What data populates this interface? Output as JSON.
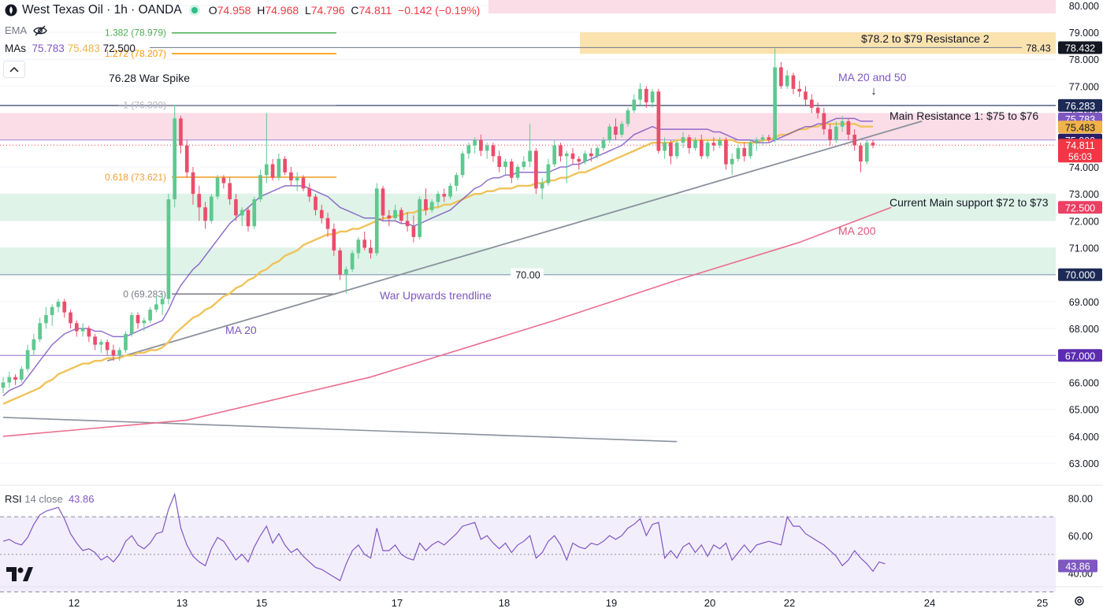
{
  "header": {
    "title": "West Texas Oil · 1h · OANDA",
    "open_label": "O",
    "open": "74.958",
    "high_label": "H",
    "high": "74.968",
    "low_label": "L",
    "low": "74.796",
    "close_label": "C",
    "close": "74.811",
    "change": "−0.142 (−0.19%)"
  },
  "indicators": {
    "ema_label": "EMA",
    "mas_label": "MAs",
    "ma20_value": "75.783",
    "ma50_value": "75.483",
    "ma200_value": "72.500",
    "rsi_label": "RSI",
    "rsi_params": "14 close",
    "rsi_value": "43.86"
  },
  "colors": {
    "up": "#26a69a",
    "down": "#f23645",
    "ma20": "#7e57c2",
    "ma50": "#f0c35a",
    "ma200": "#ec6d8f",
    "trend": "#8a919c",
    "rsi": "#7e57c2"
  },
  "chart_data": {
    "type": "candlestick",
    "x_ticks": [
      "12",
      "13",
      "15",
      "17",
      "18",
      "19",
      "20",
      "22",
      "24",
      "25"
    ],
    "y_ticks": [
      "80.000",
      "79.000",
      "78.000",
      "77.000",
      "76.000",
      "75.000",
      "74.000",
      "73.000",
      "72.000",
      "71.000",
      "70.000",
      "69.000",
      "68.000",
      "67.000",
      "66.000",
      "65.000",
      "64.000",
      "63.000"
    ],
    "ylim": [
      62.3,
      80.2
    ],
    "rsi_ticks": [
      "80.00",
      "60.00",
      "40.00"
    ],
    "rsi_ylim": [
      34,
      86
    ],
    "price_tags": [
      {
        "value": 78.432,
        "label": "78.432",
        "bg": "#131722",
        "fg": "#ffffff"
      },
      {
        "value": 76.283,
        "label": "76.283",
        "bg": "#1c2a55",
        "fg": "#ffffff"
      },
      {
        "value": 75.783,
        "label": "75.783",
        "bg": "#7e57c2",
        "fg": "#ffffff"
      },
      {
        "value": 75.483,
        "label": "75.483",
        "bg": "#f0b24a",
        "fg": "#131722"
      },
      {
        "value": 75.0,
        "label": "75.000",
        "bg": "#2a1f66",
        "fg": "#ffffff"
      },
      {
        "value": 74.811,
        "label": "74.811",
        "bg": "#f23645",
        "fg": "#ffffff",
        "sub": "56:03"
      },
      {
        "value": 72.5,
        "label": "72.500",
        "bg": "#ec3f63",
        "fg": "#ffffff"
      },
      {
        "value": 70.0,
        "label": "70.000",
        "bg": "#1c2a55",
        "fg": "#ffffff"
      },
      {
        "value": 67.0,
        "label": "67.000",
        "bg": "#5b2bb0",
        "fg": "#ffffff"
      }
    ],
    "rsi_tag": "43.86",
    "fib_levels": [
      {
        "label": "1.382 (78.979)",
        "value": 78.979,
        "color": "#4caf50"
      },
      {
        "label": "1.272 (78.207)",
        "value": 78.207,
        "color": "#ff9800"
      },
      {
        "label": "1 (76.300)",
        "value": 76.3,
        "color": "#b2b5be"
      },
      {
        "label": "0.618 (73.621)",
        "value": 73.621,
        "color": "#f0a030"
      },
      {
        "label": "0 (69.283)",
        "value": 69.283,
        "color": "#787b86"
      }
    ],
    "zones": [
      {
        "name": "$78.2 to $79 Resistance 2",
        "from": 78.2,
        "to": 79.0,
        "color": "#fbe3b0"
      },
      {
        "name": "Main Resistance 1: $75 to $76",
        "from": 75.0,
        "to": 76.0,
        "color": "#fbdde7"
      },
      {
        "name": "Current Main support $72 to $73",
        "from": 72.0,
        "to": 73.0,
        "color": "#dff3e8"
      }
    ],
    "annotations": {
      "war_spike": "76.28 War Spike",
      "ma_20_50": "MA 20 and 50",
      "resistance_1": "Main Resistance 1: $75 to $76",
      "resistance_2": "$78.2 to $79 Resistance 2",
      "support": "Current Main support $72 to $73",
      "ma200": "MA 200",
      "ma20": "MA 20",
      "trendline": "War Upwards trendline",
      "level_70": "70.00",
      "level_7843": "78.43"
    },
    "candles": [
      [
        65.8,
        66.2,
        65.6,
        66.0
      ],
      [
        66.0,
        66.4,
        65.8,
        66.2
      ],
      [
        66.2,
        66.3,
        65.9,
        66.1
      ],
      [
        66.1,
        66.6,
        66.0,
        66.5
      ],
      [
        66.5,
        67.4,
        66.4,
        67.2
      ],
      [
        67.2,
        67.8,
        67.0,
        67.6
      ],
      [
        67.6,
        68.4,
        67.5,
        68.2
      ],
      [
        68.2,
        68.8,
        68.0,
        68.5
      ],
      [
        68.5,
        68.9,
        68.1,
        68.8
      ],
      [
        68.8,
        69.1,
        68.6,
        69.0
      ],
      [
        69.0,
        69.1,
        68.4,
        68.6
      ],
      [
        68.6,
        68.7,
        68.0,
        68.2
      ],
      [
        68.2,
        68.3,
        67.7,
        67.9
      ],
      [
        67.9,
        68.2,
        67.7,
        68.0
      ],
      [
        68.0,
        68.1,
        67.5,
        67.7
      ],
      [
        67.7,
        67.8,
        67.2,
        67.4
      ],
      [
        67.4,
        67.6,
        67.1,
        67.5
      ],
      [
        67.5,
        67.6,
        67.0,
        67.2
      ],
      [
        67.2,
        67.4,
        66.8,
        67.0
      ],
      [
        67.0,
        67.3,
        66.8,
        67.2
      ],
      [
        67.2,
        67.9,
        67.1,
        67.8
      ],
      [
        67.8,
        68.6,
        67.7,
        68.5
      ],
      [
        68.5,
        68.6,
        68.0,
        68.2
      ],
      [
        68.2,
        68.4,
        67.9,
        68.3
      ],
      [
        68.3,
        68.8,
        68.2,
        68.7
      ],
      [
        68.7,
        69.2,
        68.6,
        68.9
      ],
      [
        68.9,
        69.3,
        68.5,
        69.1
      ],
      [
        69.1,
        73.0,
        68.9,
        72.8
      ],
      [
        72.8,
        76.3,
        72.5,
        75.8
      ],
      [
        75.8,
        75.9,
        74.5,
        74.8
      ],
      [
        74.8,
        75.0,
        73.6,
        73.8
      ],
      [
        73.8,
        74.0,
        72.6,
        73.0
      ],
      [
        73.0,
        73.3,
        72.0,
        72.5
      ],
      [
        72.5,
        72.7,
        71.7,
        72.0
      ],
      [
        72.0,
        73.0,
        71.9,
        72.9
      ],
      [
        72.9,
        73.7,
        72.8,
        73.6
      ],
      [
        73.6,
        73.7,
        73.2,
        73.4
      ],
      [
        73.4,
        73.6,
        72.6,
        72.8
      ],
      [
        72.8,
        73.0,
        72.0,
        72.2
      ],
      [
        72.2,
        72.5,
        71.8,
        72.4
      ],
      [
        72.4,
        72.5,
        71.6,
        71.8
      ],
      [
        71.8,
        72.9,
        71.7,
        72.8
      ],
      [
        72.8,
        73.9,
        72.7,
        73.7
      ],
      [
        73.7,
        76.0,
        73.4,
        74.1
      ],
      [
        74.1,
        74.3,
        73.5,
        73.6
      ],
      [
        73.6,
        74.5,
        73.5,
        74.3
      ],
      [
        74.3,
        74.4,
        73.7,
        73.8
      ],
      [
        73.8,
        74.0,
        73.3,
        73.5
      ],
      [
        73.5,
        73.8,
        73.1,
        73.6
      ],
      [
        73.6,
        73.7,
        73.1,
        73.2
      ],
      [
        73.2,
        73.4,
        72.7,
        72.9
      ],
      [
        72.9,
        73.0,
        72.2,
        72.4
      ],
      [
        72.4,
        72.6,
        71.9,
        72.1
      ],
      [
        72.1,
        72.3,
        71.4,
        71.7
      ],
      [
        71.7,
        71.9,
        70.7,
        70.9
      ],
      [
        70.9,
        71.0,
        69.8,
        70.0
      ],
      [
        70.0,
        70.3,
        69.3,
        70.2
      ],
      [
        70.2,
        70.9,
        70.1,
        70.8
      ],
      [
        70.8,
        71.4,
        70.6,
        71.3
      ],
      [
        71.3,
        71.6,
        70.9,
        71.0
      ],
      [
        71.0,
        71.3,
        70.6,
        70.8
      ],
      [
        70.8,
        73.4,
        70.7,
        73.2
      ],
      [
        73.2,
        73.3,
        72.0,
        72.2
      ],
      [
        72.2,
        72.4,
        71.8,
        72.1
      ],
      [
        72.1,
        72.6,
        72.0,
        72.4
      ],
      [
        72.4,
        72.5,
        71.9,
        72.0
      ],
      [
        72.0,
        72.3,
        71.6,
        71.8
      ],
      [
        71.8,
        72.2,
        71.2,
        71.4
      ],
      [
        71.4,
        72.9,
        71.3,
        72.8
      ],
      [
        72.8,
        73.2,
        72.2,
        72.4
      ],
      [
        72.4,
        72.8,
        72.3,
        72.7
      ],
      [
        72.7,
        73.1,
        72.5,
        73.0
      ],
      [
        73.0,
        73.2,
        72.7,
        72.9
      ],
      [
        72.9,
        73.4,
        72.8,
        73.3
      ],
      [
        73.3,
        73.8,
        73.1,
        73.7
      ],
      [
        73.7,
        74.6,
        73.6,
        74.5
      ],
      [
        74.5,
        74.9,
        74.3,
        74.8
      ],
      [
        74.8,
        75.1,
        74.5,
        75.0
      ],
      [
        75.0,
        75.2,
        74.4,
        74.6
      ],
      [
        74.6,
        74.9,
        74.3,
        74.8
      ],
      [
        74.8,
        74.9,
        74.2,
        74.4
      ],
      [
        74.4,
        74.6,
        73.8,
        74.0
      ],
      [
        74.0,
        74.3,
        73.7,
        74.2
      ],
      [
        74.2,
        74.3,
        73.4,
        73.6
      ],
      [
        73.6,
        74.1,
        73.5,
        74.0
      ],
      [
        74.0,
        74.4,
        73.9,
        74.2
      ],
      [
        74.2,
        75.6,
        74.0,
        74.6
      ],
      [
        74.6,
        74.7,
        73.0,
        73.2
      ],
      [
        73.2,
        73.6,
        72.8,
        73.4
      ],
      [
        73.4,
        74.3,
        73.3,
        74.1
      ],
      [
        74.1,
        75.0,
        74.0,
        74.8
      ],
      [
        74.8,
        74.9,
        74.2,
        74.4
      ],
      [
        74.4,
        74.6,
        73.4,
        74.5
      ],
      [
        74.5,
        74.7,
        74.1,
        74.3
      ],
      [
        74.3,
        74.4,
        73.9,
        74.2
      ],
      [
        74.2,
        74.6,
        74.1,
        74.5
      ],
      [
        74.5,
        74.7,
        74.2,
        74.4
      ],
      [
        74.4,
        74.8,
        74.3,
        74.7
      ],
      [
        74.7,
        75.1,
        74.6,
        75.0
      ],
      [
        75.0,
        75.6,
        74.9,
        75.5
      ],
      [
        75.5,
        75.8,
        75.0,
        75.2
      ],
      [
        75.2,
        75.7,
        75.1,
        75.6
      ],
      [
        75.6,
        76.2,
        75.5,
        76.1
      ],
      [
        76.1,
        76.7,
        76.0,
        76.5
      ],
      [
        76.5,
        77.1,
        76.3,
        76.9
      ],
      [
        76.9,
        77.0,
        76.2,
        76.4
      ],
      [
        76.4,
        76.9,
        76.2,
        76.8
      ],
      [
        76.8,
        76.9,
        74.5,
        74.6
      ],
      [
        74.6,
        75.1,
        74.3,
        74.9
      ],
      [
        74.9,
        75.0,
        74.1,
        74.4
      ],
      [
        74.4,
        75.0,
        74.3,
        74.9
      ],
      [
        74.9,
        75.3,
        74.7,
        75.1
      ],
      [
        75.1,
        75.2,
        74.5,
        74.7
      ],
      [
        74.7,
        75.1,
        74.6,
        75.0
      ],
      [
        75.0,
        75.2,
        74.3,
        74.4
      ],
      [
        74.4,
        75.0,
        74.3,
        74.9
      ],
      [
        74.9,
        75.1,
        74.6,
        74.8
      ],
      [
        74.8,
        75.1,
        74.7,
        75.0
      ],
      [
        75.0,
        75.1,
        73.9,
        74.1
      ],
      [
        74.1,
        74.5,
        73.7,
        74.3
      ],
      [
        74.3,
        74.8,
        74.2,
        74.7
      ],
      [
        74.7,
        74.9,
        74.2,
        74.4
      ],
      [
        74.4,
        75.0,
        74.3,
        74.9
      ],
      [
        74.9,
        75.1,
        74.6,
        75.0
      ],
      [
        75.0,
        75.2,
        74.8,
        75.1
      ],
      [
        75.1,
        75.2,
        74.9,
        75.0
      ],
      [
        75.0,
        78.4,
        74.9,
        77.7
      ],
      [
        77.7,
        77.9,
        76.9,
        77.0
      ],
      [
        77.0,
        77.6,
        76.9,
        77.4
      ],
      [
        77.4,
        77.5,
        76.7,
        76.9
      ],
      [
        76.9,
        77.2,
        76.6,
        76.8
      ],
      [
        76.8,
        77.0,
        76.3,
        76.5
      ],
      [
        76.5,
        76.7,
        76.0,
        76.2
      ],
      [
        76.2,
        76.4,
        75.8,
        76.0
      ],
      [
        76.0,
        76.2,
        75.2,
        75.4
      ],
      [
        75.4,
        75.6,
        74.8,
        75.0
      ],
      [
        75.0,
        75.7,
        74.9,
        75.5
      ],
      [
        75.5,
        75.9,
        75.3,
        75.7
      ],
      [
        75.7,
        75.8,
        75.0,
        75.2
      ],
      [
        75.2,
        75.4,
        74.6,
        74.8
      ],
      [
        74.8,
        74.9,
        73.8,
        74.2
      ],
      [
        74.2,
        75.0,
        74.1,
        74.9
      ],
      [
        74.9,
        75.0,
        74.7,
        74.8
      ]
    ],
    "ma20": [
      65.5,
      65.7,
      65.8,
      65.9,
      66.2,
      66.5,
      66.8,
      67.1,
      67.4,
      67.6,
      67.8,
      67.9,
      68.0,
      68.0,
      68.0,
      67.9,
      67.9,
      67.8,
      67.7,
      67.7,
      67.7,
      67.8,
      67.9,
      68.0,
      68.1,
      68.2,
      68.3,
      68.7,
      69.2,
      69.6,
      69.9,
      70.2,
      70.4,
      70.7,
      71.0,
      71.3,
      71.6,
      71.9,
      72.1,
      72.3,
      72.5,
      72.7,
      72.9,
      73.0,
      73.1,
      73.2,
      73.3,
      73.3,
      73.3,
      73.3,
      73.2,
      73.1,
      73.0,
      72.9,
      72.7,
      72.5,
      72.4,
      72.3,
      72.2,
      72.1,
      72.1,
      72.1,
      72.0,
      72.0,
      72.0,
      71.9,
      71.9,
      71.8,
      71.9,
      72.0,
      72.1,
      72.2,
      72.3,
      72.4,
      72.6,
      72.8,
      73.0,
      73.2,
      73.3,
      73.5,
      73.6,
      73.6,
      73.7,
      73.7,
      73.8,
      73.8,
      73.8,
      73.8,
      73.8,
      73.8,
      73.9,
      74.0,
      74.0,
      74.1,
      74.1,
      74.2,
      74.3,
      74.4,
      74.5,
      74.6,
      74.7,
      74.8,
      75.0,
      75.2,
      75.3,
      75.4,
      75.5,
      75.4,
      75.4,
      75.4,
      75.4,
      75.4,
      75.4,
      75.4,
      75.4,
      75.4,
      75.3,
      75.3,
      75.2,
      75.1,
      75.0,
      75.0,
      75.0,
      74.9,
      74.9,
      74.9,
      75.0,
      75.1,
      75.2,
      75.3,
      75.4,
      75.5,
      75.5,
      75.6,
      75.6,
      75.7,
      75.8,
      75.8,
      75.8,
      75.8,
      75.7,
      75.7,
      75.7
    ],
    "ma50": [
      65.2,
      65.3,
      65.4,
      65.5,
      65.6,
      65.7,
      65.8,
      66.0,
      66.1,
      66.3,
      66.4,
      66.5,
      66.6,
      66.7,
      66.7,
      66.8,
      66.8,
      66.9,
      66.9,
      66.9,
      67.0,
      67.0,
      67.1,
      67.1,
      67.2,
      67.2,
      67.3,
      67.5,
      67.8,
      68.0,
      68.2,
      68.4,
      68.5,
      68.7,
      68.8,
      69.0,
      69.2,
      69.3,
      69.5,
      69.6,
      69.8,
      69.9,
      70.1,
      70.2,
      70.4,
      70.5,
      70.7,
      70.8,
      70.9,
      71.1,
      71.2,
      71.3,
      71.4,
      71.5,
      71.5,
      71.6,
      71.6,
      71.7,
      71.7,
      71.8,
      71.9,
      72.0,
      72.1,
      72.1,
      72.2,
      72.2,
      72.3,
      72.3,
      72.4,
      72.4,
      72.5,
      72.5,
      72.6,
      72.6,
      72.7,
      72.8,
      72.9,
      73.0,
      73.0,
      73.1,
      73.1,
      73.2,
      73.2,
      73.2,
      73.3,
      73.3,
      73.3,
      73.4,
      73.4,
      73.5,
      73.5,
      73.6,
      73.6,
      73.7,
      73.8,
      73.8,
      73.9,
      74.0,
      74.1,
      74.2,
      74.3,
      74.4,
      74.5,
      74.6,
      74.7,
      74.8,
      74.9,
      74.9,
      74.9,
      74.9,
      75.0,
      75.0,
      75.0,
      75.0,
      75.0,
      75.0,
      75.0,
      75.0,
      75.0,
      75.0,
      74.9,
      74.9,
      74.9,
      74.9,
      75.0,
      75.0,
      75.1,
      75.2,
      75.2,
      75.3,
      75.4,
      75.4,
      75.5,
      75.5,
      75.6,
      75.6,
      75.6,
      75.6,
      75.6,
      75.6,
      75.5,
      75.5,
      75.5
    ],
    "ma200": [
      [
        0,
        64.0
      ],
      [
        30,
        64.6
      ],
      [
        60,
        66.2
      ],
      [
        90,
        68.3
      ],
      [
        110,
        69.8
      ],
      [
        130,
        71.2
      ],
      [
        145,
        72.5
      ]
    ],
    "trendline": [
      [
        17,
        66.8
      ],
      [
        150,
        75.7
      ]
    ],
    "downline": [
      [
        0,
        64.7
      ],
      [
        110,
        63.8
      ]
    ],
    "rsi": [
      57,
      58,
      56,
      55,
      59,
      66,
      71,
      73,
      74,
      75,
      69,
      61,
      56,
      52,
      53,
      51,
      47,
      49,
      46,
      50,
      57,
      60,
      55,
      53,
      56,
      61,
      62,
      74,
      82,
      64,
      55,
      49,
      46,
      44,
      53,
      59,
      57,
      52,
      47,
      50,
      46,
      54,
      60,
      65,
      56,
      61,
      55,
      51,
      53,
      49,
      46,
      43,
      42,
      40,
      38,
      36,
      45,
      52,
      55,
      50,
      48,
      64,
      52,
      52,
      55,
      50,
      48,
      47,
      56,
      52,
      55,
      57,
      55,
      58,
      61,
      65,
      66,
      67,
      58,
      60,
      56,
      53,
      56,
      51,
      55,
      57,
      60,
      48,
      51,
      57,
      60,
      55,
      47,
      56,
      54,
      53,
      56,
      55,
      57,
      60,
      58,
      60,
      64,
      66,
      69,
      60,
      66,
      67,
      48,
      52,
      48,
      54,
      56,
      51,
      55,
      49,
      55,
      53,
      56,
      47,
      51,
      55,
      51,
      55,
      56,
      57,
      56,
      55,
      70,
      65,
      65,
      61,
      59,
      57,
      55,
      52,
      49,
      44,
      47,
      52,
      48,
      45,
      41,
      46,
      45
    ]
  }
}
